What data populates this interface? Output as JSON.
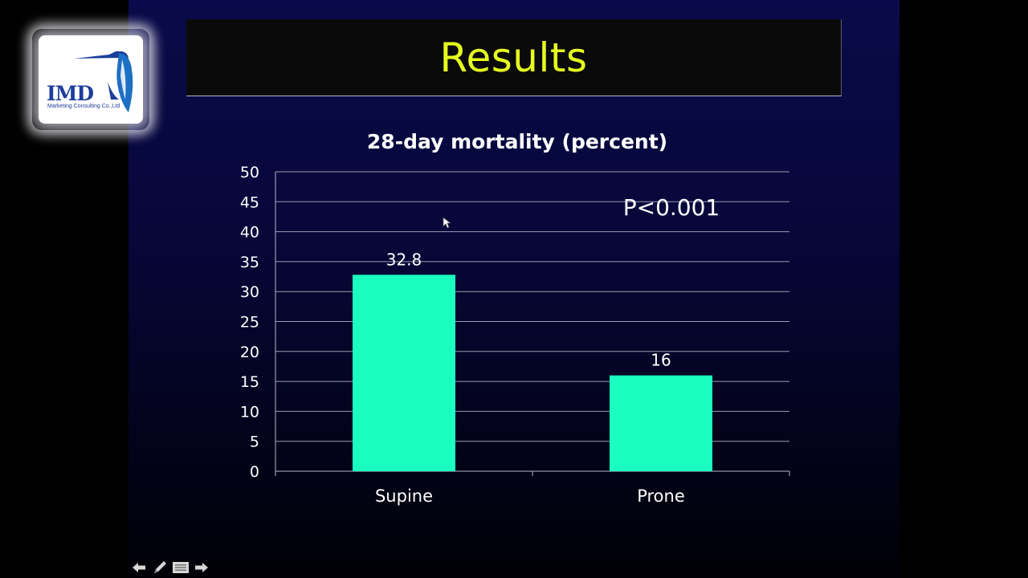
{
  "slide": {
    "title": "Results",
    "annotation": "P<0.001"
  },
  "logo": {
    "name": "IMD",
    "tagline": "Marketing Consulting Co.,Ltd"
  },
  "chart_data": {
    "type": "bar",
    "title": "28-day mortality (percent)",
    "categories": [
      "Supine",
      "Prone"
    ],
    "values": [
      32.8,
      16
    ],
    "data_labels": [
      "32.8",
      "16"
    ],
    "ylim": [
      0,
      50
    ],
    "ytick_step": 5,
    "grid": true,
    "bar_color": "#1affc0",
    "xlabel": "",
    "ylabel": ""
  },
  "nav": {
    "icons": [
      "arrow-left-icon",
      "pen-icon",
      "menu-icon",
      "arrow-right-icon"
    ]
  },
  "colors": {
    "title": "#e6ff1e",
    "background_top": "#0a0a4a",
    "text": "#ffffff"
  }
}
